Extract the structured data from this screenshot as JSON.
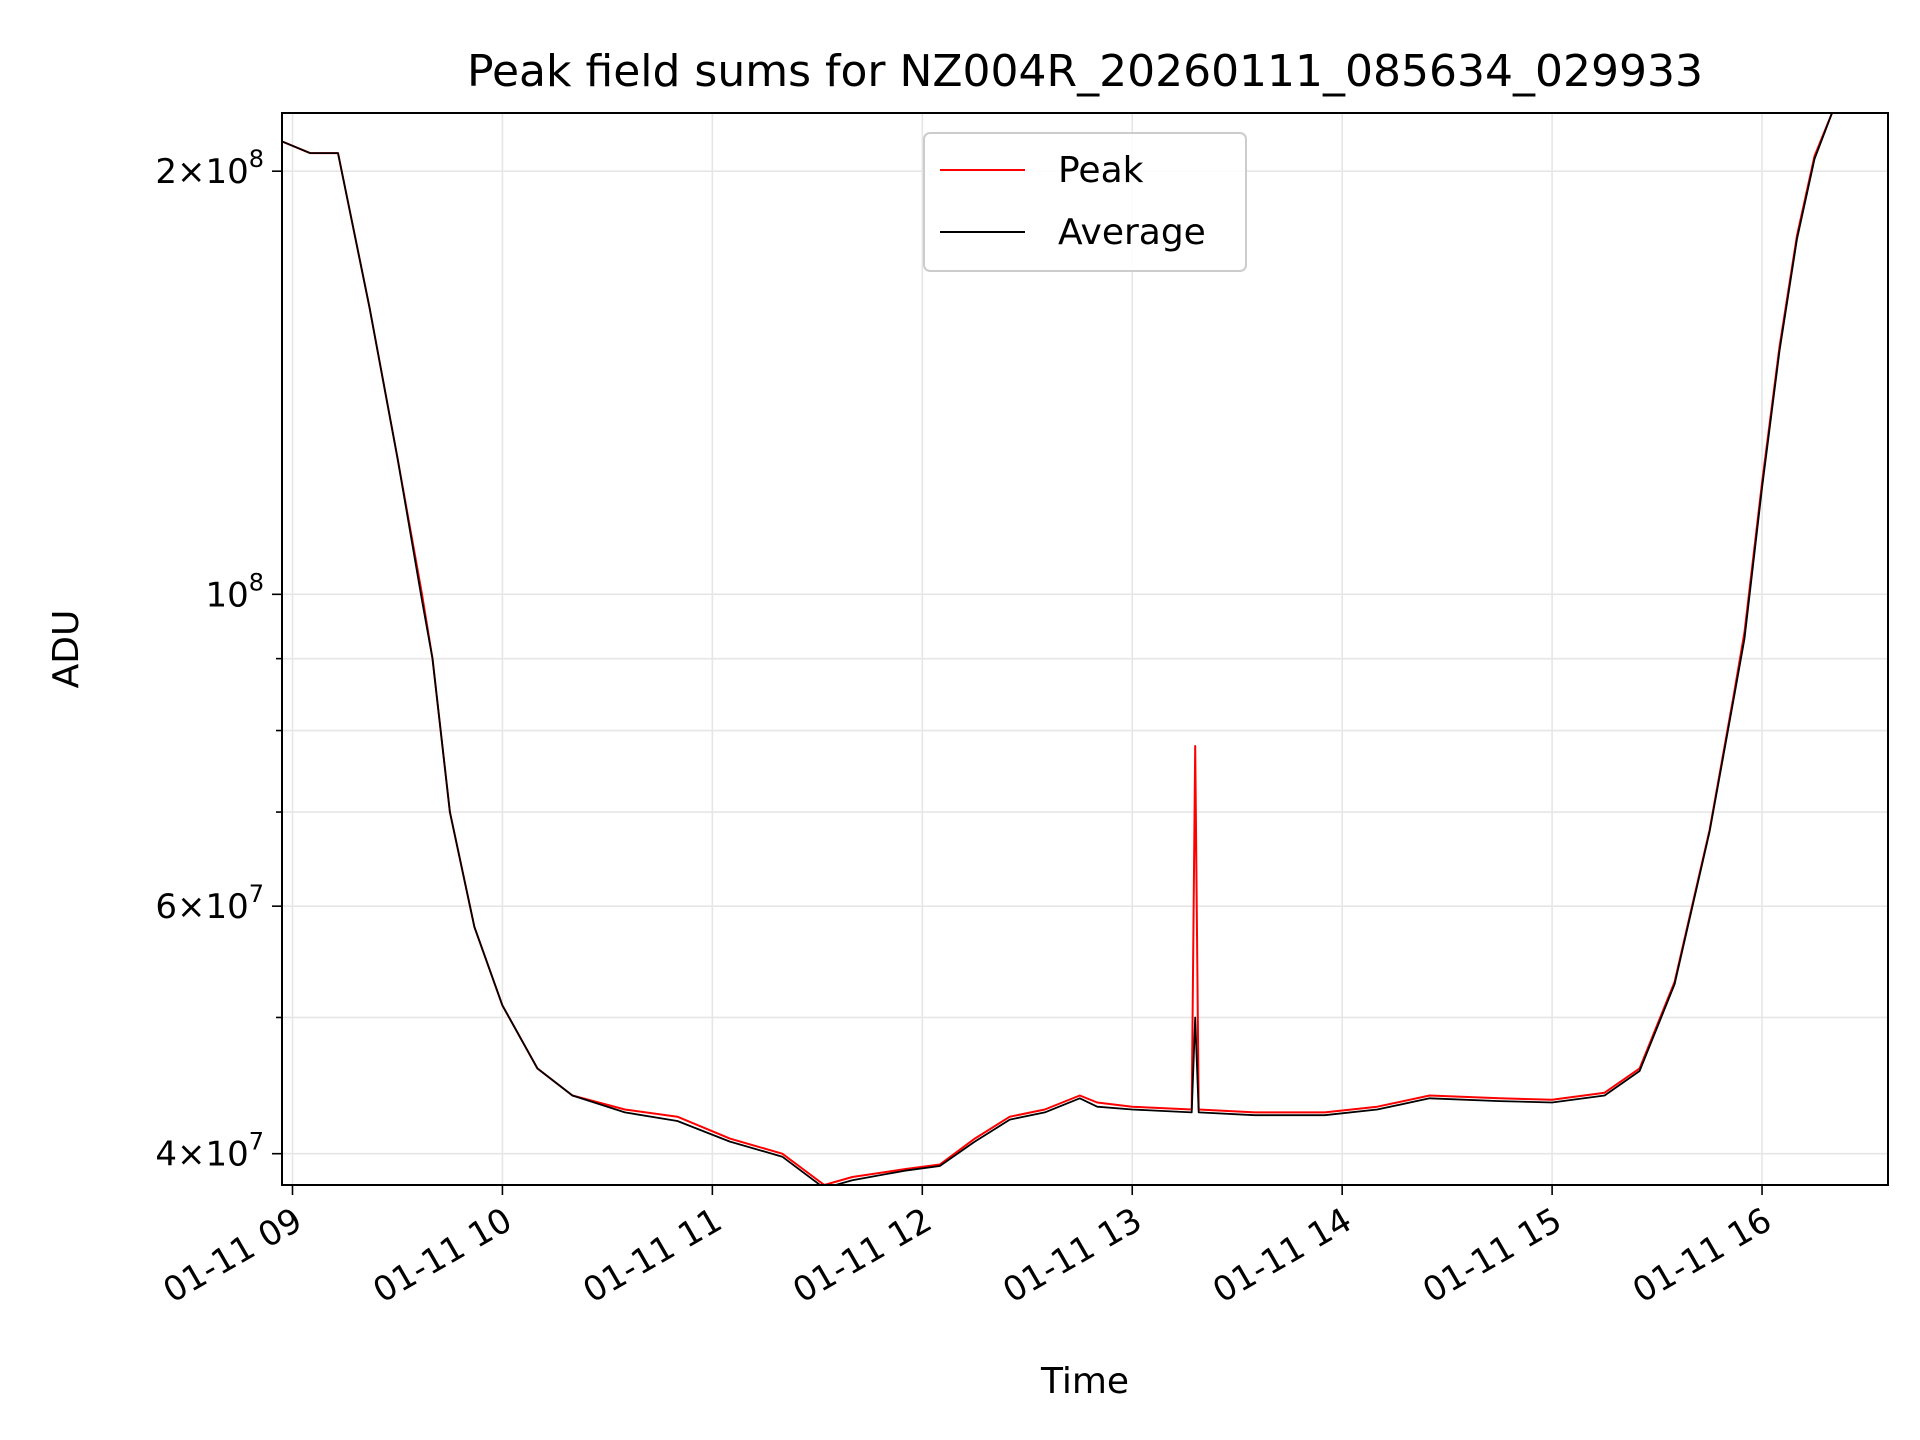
{
  "chart_data": {
    "type": "line",
    "title": "Peak field sums for NZ004R_20260111_085634_029933",
    "xlabel": "Time",
    "ylabel": "ADU",
    "yscale": "log",
    "xlim": [
      "2026-01-11 08:57",
      "2026-01-11 16:36"
    ],
    "ylim": [
      38000000,
      220000000
    ],
    "grid": true,
    "legend_position": "top-center",
    "x_ticks": [
      {
        "value": "2026-01-11 09:00",
        "label": "01-11 09"
      },
      {
        "value": "2026-01-11 10:00",
        "label": "01-11 10"
      },
      {
        "value": "2026-01-11 11:00",
        "label": "01-11 11"
      },
      {
        "value": "2026-01-11 12:00",
        "label": "01-11 12"
      },
      {
        "value": "2026-01-11 13:00",
        "label": "01-11 13"
      },
      {
        "value": "2026-01-11 14:00",
        "label": "01-11 14"
      },
      {
        "value": "2026-01-11 15:00",
        "label": "01-11 15"
      },
      {
        "value": "2026-01-11 16:00",
        "label": "01-11 16"
      }
    ],
    "y_ticks_major": [
      {
        "value": 40000000,
        "mant": "4",
        "exp": "7"
      },
      {
        "value": 60000000,
        "mant": "6",
        "exp": "7"
      },
      {
        "value": 100000000,
        "mant": "",
        "exp": "8"
      },
      {
        "value": 200000000,
        "mant": "2",
        "exp": "8"
      }
    ],
    "y_ticks_minor": [
      50000000,
      70000000,
      80000000,
      90000000
    ],
    "colors": {
      "peak": "#ff0000",
      "average": "#000000"
    },
    "series": [
      {
        "name": "Peak",
        "color": "#ff0000",
        "x": [
          "2026-01-11 08:57",
          "2026-01-11 09:05",
          "2026-01-11 09:13",
          "2026-01-11 09:22",
          "2026-01-11 09:30",
          "2026-01-11 09:37",
          "2026-01-11 09:40",
          "2026-01-11 09:45",
          "2026-01-11 09:52",
          "2026-01-11 10:00",
          "2026-01-11 10:10",
          "2026-01-11 10:20",
          "2026-01-11 10:35",
          "2026-01-11 10:50",
          "2026-01-11 11:05",
          "2026-01-11 11:20",
          "2026-01-11 11:32",
          "2026-01-11 11:40",
          "2026-01-11 11:55",
          "2026-01-11 12:05",
          "2026-01-11 12:15",
          "2026-01-11 12:25",
          "2026-01-11 12:35",
          "2026-01-11 12:45",
          "2026-01-11 12:50",
          "2026-01-11 13:00",
          "2026-01-11 13:17",
          "2026-01-11 13:18",
          "2026-01-11 13:19",
          "2026-01-11 13:35",
          "2026-01-11 13:55",
          "2026-01-11 14:10",
          "2026-01-11 14:25",
          "2026-01-11 14:45",
          "2026-01-11 15:00",
          "2026-01-11 15:15",
          "2026-01-11 15:25",
          "2026-01-11 15:35",
          "2026-01-11 15:45",
          "2026-01-11 15:52",
          "2026-01-11 15:55",
          "2026-01-11 16:00",
          "2026-01-11 16:05",
          "2026-01-11 16:10",
          "2026-01-11 16:15",
          "2026-01-11 16:20"
        ],
        "y": [
          210000000,
          206000000,
          206000000,
          160000000,
          125000000,
          100000000,
          90000000,
          70000000,
          58000000,
          51000000,
          46000000,
          44000000,
          43000000,
          42500000,
          41000000,
          40000000,
          38000000,
          38500000,
          39000000,
          39300000,
          41000000,
          42500000,
          43000000,
          44000000,
          43500000,
          43200000,
          43000000,
          78000000,
          43000000,
          42800000,
          42800000,
          43200000,
          44000000,
          43800000,
          43700000,
          44200000,
          46000000,
          53000000,
          68000000,
          85000000,
          94000000,
          120000000,
          150000000,
          180000000,
          205000000,
          220000000
        ]
      },
      {
        "name": "Average",
        "color": "#000000",
        "x": [
          "2026-01-11 08:57",
          "2026-01-11 09:05",
          "2026-01-11 09:13",
          "2026-01-11 09:22",
          "2026-01-11 09:30",
          "2026-01-11 09:37",
          "2026-01-11 09:40",
          "2026-01-11 09:45",
          "2026-01-11 09:52",
          "2026-01-11 10:00",
          "2026-01-11 10:10",
          "2026-01-11 10:20",
          "2026-01-11 10:35",
          "2026-01-11 10:50",
          "2026-01-11 11:05",
          "2026-01-11 11:20",
          "2026-01-11 11:32",
          "2026-01-11 11:40",
          "2026-01-11 11:55",
          "2026-01-11 12:05",
          "2026-01-11 12:15",
          "2026-01-11 12:25",
          "2026-01-11 12:35",
          "2026-01-11 12:45",
          "2026-01-11 12:50",
          "2026-01-11 13:00",
          "2026-01-11 13:17",
          "2026-01-11 13:18",
          "2026-01-11 13:19",
          "2026-01-11 13:35",
          "2026-01-11 13:55",
          "2026-01-11 14:10",
          "2026-01-11 14:25",
          "2026-01-11 14:45",
          "2026-01-11 15:00",
          "2026-01-11 15:15",
          "2026-01-11 15:25",
          "2026-01-11 15:35",
          "2026-01-11 15:45",
          "2026-01-11 15:52",
          "2026-01-11 15:55",
          "2026-01-11 16:00",
          "2026-01-11 16:05",
          "2026-01-11 16:10",
          "2026-01-11 16:15",
          "2026-01-11 16:20"
        ],
        "y": [
          210000000,
          206000000,
          206000000,
          160000000,
          125000000,
          99000000,
          90000000,
          70000000,
          58000000,
          51000000,
          46000000,
          44000000,
          42800000,
          42200000,
          40800000,
          39800000,
          37800000,
          38300000,
          38900000,
          39200000,
          40800000,
          42300000,
          42800000,
          43800000,
          43200000,
          43000000,
          42800000,
          50000000,
          42800000,
          42600000,
          42600000,
          43000000,
          43800000,
          43600000,
          43500000,
          44000000,
          45800000,
          52800000,
          67800000,
          84500000,
          93000000,
          119000000,
          149000000,
          179000000,
          204000000,
          220000000
        ]
      }
    ]
  }
}
